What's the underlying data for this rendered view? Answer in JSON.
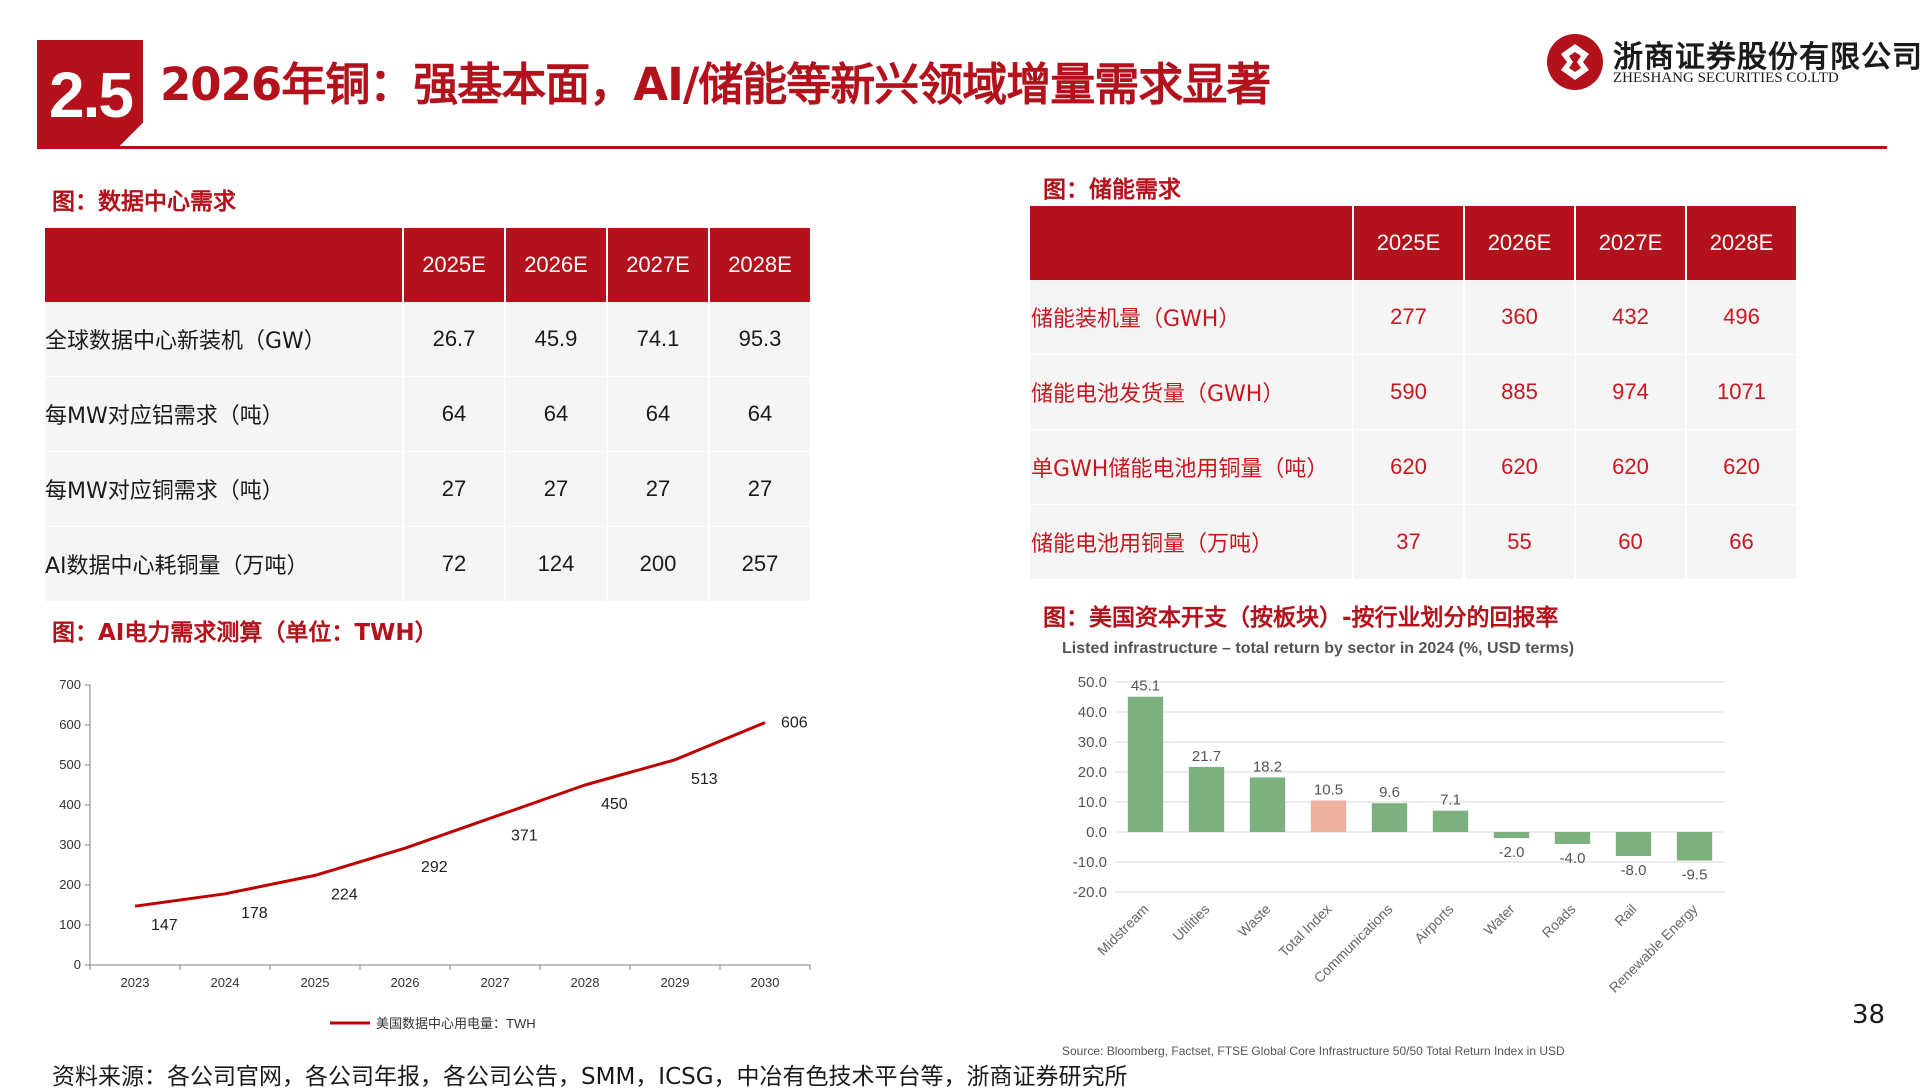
{
  "header": {
    "section_number": "2.5",
    "title": "2026年铜：强基本面，AI/储能等新兴领域增量需求显著",
    "logo_cn": "浙商证券股份有限公司",
    "logo_en": "ZHESHANG SECURITIES CO.LTD",
    "brand_color": "#b3121c"
  },
  "datacenter": {
    "caption": "图：数据中心需求",
    "columns": [
      "",
      "2025E",
      "2026E",
      "2027E",
      "2028E"
    ],
    "rows": [
      [
        "全球数据中心新装机（GW）",
        "26.7",
        "45.9",
        "74.1",
        "95.3"
      ],
      [
        "每MW对应铝需求（吨）",
        "64",
        "64",
        "64",
        "64"
      ],
      [
        "每MW对应铜需求（吨）",
        "27",
        "27",
        "27",
        "27"
      ],
      [
        "AI数据中心耗铜量（万吨）",
        "72",
        "124",
        "200",
        "257"
      ]
    ]
  },
  "storage": {
    "caption": "图：储能需求",
    "columns": [
      "",
      "2025E",
      "2026E",
      "2027E",
      "2028E"
    ],
    "rows": [
      [
        "储能装机量（GWH）",
        "277",
        "360",
        "432",
        "496"
      ],
      [
        "储能电池发货量（GWH）",
        "590",
        "885",
        "974",
        "1071"
      ],
      [
        "单GWH储能电池用铜量（吨）",
        "620",
        "620",
        "620",
        "620"
      ],
      [
        "储能电池用铜量（万吨）",
        "37",
        "55",
        "60",
        "66"
      ]
    ]
  },
  "ai_power": {
    "caption": "图：AI电力需求测算（单位：TWH）"
  },
  "capex": {
    "caption": "图：美国资本开支（按板块）-按行业划分的回报率"
  },
  "chart_data": [
    {
      "type": "line",
      "title": "",
      "x": [
        "2023",
        "2024",
        "2025",
        "2026",
        "2027",
        "2028",
        "2029",
        "2030"
      ],
      "series": [
        {
          "name": "美国数据中心用电量：TWH",
          "values": [
            147,
            178,
            224,
            292,
            371,
            450,
            513,
            606
          ],
          "color": "#c00000"
        }
      ],
      "yticks": [
        "0",
        "100",
        "200",
        "300",
        "400",
        "500",
        "600",
        "700"
      ],
      "ylim": [
        0,
        700
      ],
      "grid": false,
      "legend": "bottom"
    },
    {
      "type": "bar",
      "title": "Listed infrastructure – total return by sector in 2024 (%, USD terms)",
      "categories": [
        "Midstream",
        "Utilities",
        "Waste",
        "Total Index",
        "Communications",
        "Airports",
        "Water",
        "Roads",
        "Rail",
        "Renewable Energy"
      ],
      "values": [
        45.1,
        21.7,
        18.2,
        10.5,
        9.6,
        7.1,
        -2.0,
        -4.0,
        -8.0,
        -9.5
      ],
      "labels": [
        "45.1",
        "21.7",
        "18.2",
        "10.5",
        "9.6",
        "7.1",
        "-2.0",
        "-4.0",
        "-8.0",
        "-9.5"
      ],
      "yticks": [
        "50.0",
        "40.0",
        "30.0",
        "20.0",
        "10.0",
        "0.0",
        "-10.0",
        "-20.0"
      ],
      "ylim": [
        -20,
        50
      ],
      "grid": true,
      "colors": {
        "default": "#7db07f",
        "highlight": "#edb19f"
      },
      "highlight_index": 3,
      "source": "Source: Bloomberg, Factset, FTSE Global Core Infrastructure 50/50 Total Return Index in USD"
    }
  ],
  "footer": {
    "source": "资料来源：各公司官网，各公司年报，各公司公告，SMM，ICSG，中冶有色技术平台等，浙商证券研究所",
    "page_number": "38"
  }
}
